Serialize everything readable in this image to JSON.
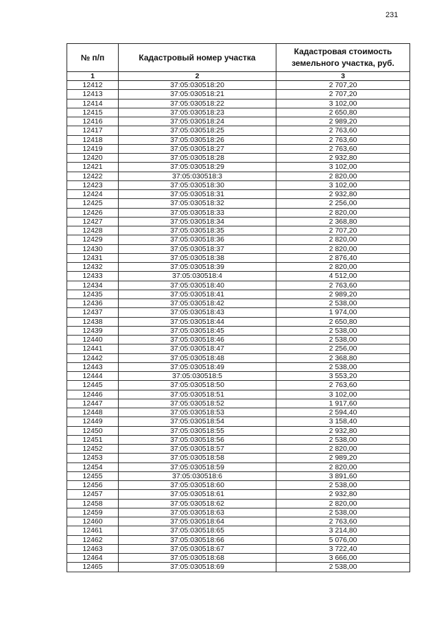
{
  "page_number": "231",
  "table": {
    "headers": [
      "№ п/п",
      "Кадастровый номер участка",
      "Кадастровая стоимость земельного участка, руб."
    ],
    "column_numbers": [
      "1",
      "2",
      "3"
    ],
    "rows": [
      [
        "12412",
        "37:05:030518:20",
        "2 707,20"
      ],
      [
        "12413",
        "37:05:030518:21",
        "2 707,20"
      ],
      [
        "12414",
        "37:05:030518:22",
        "3 102,00"
      ],
      [
        "12415",
        "37:05:030518:23",
        "2 650,80"
      ],
      [
        "12416",
        "37:05:030518:24",
        "2 989,20"
      ],
      [
        "12417",
        "37:05:030518:25",
        "2 763,60"
      ],
      [
        "12418",
        "37:05:030518:26",
        "2 763,60"
      ],
      [
        "12419",
        "37:05:030518:27",
        "2 763,60"
      ],
      [
        "12420",
        "37:05:030518:28",
        "2 932,80"
      ],
      [
        "12421",
        "37:05:030518:29",
        "3 102,00"
      ],
      [
        "12422",
        "37:05:030518:3",
        "2 820,00"
      ],
      [
        "12423",
        "37:05:030518:30",
        "3 102,00"
      ],
      [
        "12424",
        "37:05:030518:31",
        "2 932,80"
      ],
      [
        "12425",
        "37:05:030518:32",
        "2 256,00"
      ],
      [
        "12426",
        "37:05:030518:33",
        "2 820,00"
      ],
      [
        "12427",
        "37:05:030518:34",
        "2 368,80"
      ],
      [
        "12428",
        "37:05:030518:35",
        "2 707,20"
      ],
      [
        "12429",
        "37:05:030518:36",
        "2 820,00"
      ],
      [
        "12430",
        "37:05:030518:37",
        "2 820,00"
      ],
      [
        "12431",
        "37:05:030518:38",
        "2 876,40"
      ],
      [
        "12432",
        "37:05:030518:39",
        "2 820,00"
      ],
      [
        "12433",
        "37:05:030518:4",
        "4 512,00"
      ],
      [
        "12434",
        "37:05:030518:40",
        "2 763,60"
      ],
      [
        "12435",
        "37:05:030518:41",
        "2 989,20"
      ],
      [
        "12436",
        "37:05:030518:42",
        "2 538,00"
      ],
      [
        "12437",
        "37:05:030518:43",
        "1 974,00"
      ],
      [
        "12438",
        "37:05:030518:44",
        "2 650,80"
      ],
      [
        "12439",
        "37:05:030518:45",
        "2 538,00"
      ],
      [
        "12440",
        "37:05:030518:46",
        "2 538,00"
      ],
      [
        "12441",
        "37:05:030518:47",
        "2 256,00"
      ],
      [
        "12442",
        "37:05:030518:48",
        "2 368,80"
      ],
      [
        "12443",
        "37:05:030518:49",
        "2 538,00"
      ],
      [
        "12444",
        "37:05:030518:5",
        "3 553,20"
      ],
      [
        "12445",
        "37:05:030518:50",
        "2 763,60"
      ],
      [
        "12446",
        "37:05:030518:51",
        "3 102,00"
      ],
      [
        "12447",
        "37:05:030518:52",
        "1 917,60"
      ],
      [
        "12448",
        "37:05:030518:53",
        "2 594,40"
      ],
      [
        "12449",
        "37:05:030518:54",
        "3 158,40"
      ],
      [
        "12450",
        "37:05:030518:55",
        "2 932,80"
      ],
      [
        "12451",
        "37:05:030518:56",
        "2 538,00"
      ],
      [
        "12452",
        "37:05:030518:57",
        "2 820,00"
      ],
      [
        "12453",
        "37:05:030518:58",
        "2 989,20"
      ],
      [
        "12454",
        "37:05:030518:59",
        "2 820,00"
      ],
      [
        "12455",
        "37:05:030518:6",
        "3 891,60"
      ],
      [
        "12456",
        "37:05:030518:60",
        "2 538,00"
      ],
      [
        "12457",
        "37:05:030518:61",
        "2 932,80"
      ],
      [
        "12458",
        "37:05:030518:62",
        "2 820,00"
      ],
      [
        "12459",
        "37:05:030518:63",
        "2 538,00"
      ],
      [
        "12460",
        "37:05:030518:64",
        "2 763,60"
      ],
      [
        "12461",
        "37:05:030518:65",
        "3 214,80"
      ],
      [
        "12462",
        "37:05:030518:66",
        "5 076,00"
      ],
      [
        "12463",
        "37:05:030518:67",
        "3 722,40"
      ],
      [
        "12464",
        "37:05:030518:68",
        "3 666,00"
      ],
      [
        "12465",
        "37:05:030518:69",
        "2 538,00"
      ]
    ]
  }
}
